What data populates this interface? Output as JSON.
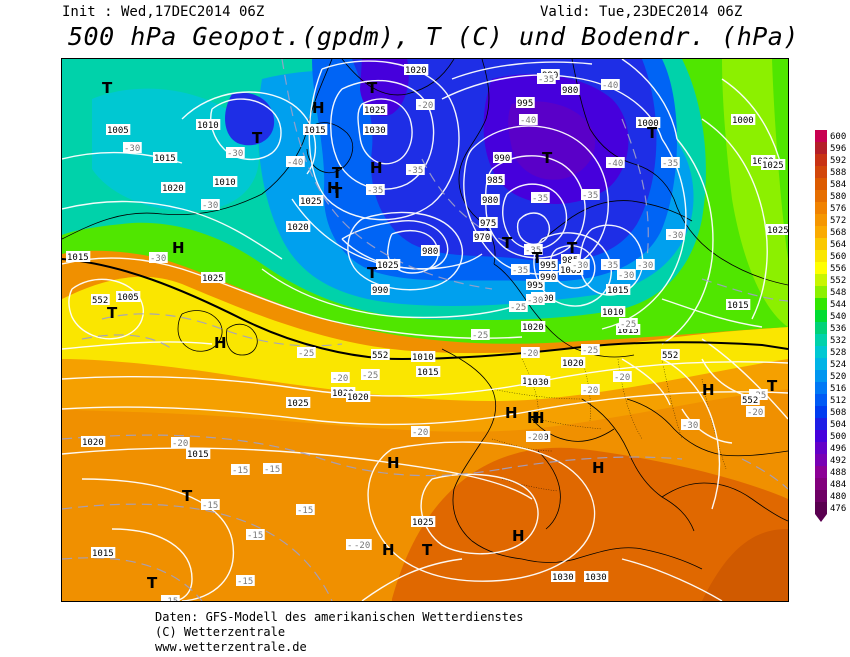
{
  "header": {
    "init": "Init : Wed,17DEC2014 06Z",
    "valid": "Valid: Tue,23DEC2014 06Z",
    "title": "500 hPa Geopot.(gpdm), T (C) und Bodendr. (hPa)"
  },
  "legend": {
    "labels": [
      "600",
      "596",
      "592",
      "588",
      "584",
      "580",
      "576",
      "572",
      "568",
      "564",
      "560",
      "556",
      "552",
      "548",
      "544",
      "540",
      "536",
      "532",
      "528",
      "524",
      "520",
      "516",
      "512",
      "508",
      "504",
      "500",
      "496",
      "492",
      "488",
      "484",
      "480",
      "476"
    ],
    "colors": [
      "#c80050",
      "#b41e28",
      "#c83214",
      "#d2460a",
      "#dc5a00",
      "#e66e00",
      "#f08200",
      "#f59600",
      "#faaa00",
      "#fac800",
      "#fae600",
      "#ffff00",
      "#c8f500",
      "#8cf000",
      "#32e600",
      "#00dc32",
      "#00d278",
      "#00d2aa",
      "#00c8d2",
      "#00b4e6",
      "#0096f0",
      "#0078f5",
      "#005af5",
      "#003cf0",
      "#1e1ee6",
      "#4600dc",
      "#6400c8",
      "#7800b4",
      "#8c0096",
      "#82007d",
      "#6e0064",
      "#5a0050"
    ]
  },
  "map": {
    "pressure_labels": [
      {
        "t": "1020"
      },
      {
        "t": "1025"
      },
      {
        "t": "1030"
      },
      {
        "t": "1010"
      },
      {
        "t": "1015"
      },
      {
        "t": "1015"
      },
      {
        "t": "1020"
      },
      {
        "t": "1020"
      },
      {
        "t": "1025"
      },
      {
        "t": "1010"
      },
      {
        "t": "1005"
      },
      {
        "t": "1015"
      },
      {
        "t": "1025"
      },
      {
        "t": "1005"
      },
      {
        "t": "1010"
      },
      {
        "t": "1015"
      },
      {
        "t": "1020"
      },
      {
        "t": "1025"
      },
      {
        "t": "1020"
      },
      {
        "t": "1020"
      },
      {
        "t": "1015"
      },
      {
        "t": "1015"
      },
      {
        "t": "1025"
      },
      {
        "t": "1030"
      },
      {
        "t": "1030"
      },
      {
        "t": "1030"
      },
      {
        "t": "1030"
      },
      {
        "t": "1025"
      },
      {
        "t": "1030"
      },
      {
        "t": "1020"
      },
      {
        "t": "1015"
      },
      {
        "t": "1010"
      },
      {
        "t": "1015"
      },
      {
        "t": "1020"
      },
      {
        "t": "1025"
      },
      {
        "t": "1025"
      },
      {
        "t": "1000"
      },
      {
        "t": "995"
      },
      {
        "t": "990"
      },
      {
        "t": "985"
      },
      {
        "t": "980"
      },
      {
        "t": "975"
      },
      {
        "t": "970"
      },
      {
        "t": "980"
      },
      {
        "t": "990"
      },
      {
        "t": "995"
      },
      {
        "t": "1000"
      },
      {
        "t": "990"
      },
      {
        "t": "995"
      },
      {
        "t": "985"
      },
      {
        "t": "990"
      },
      {
        "t": "980"
      },
      {
        "t": "1005"
      },
      {
        "t": "1000"
      },
      {
        "t": "1020"
      },
      {
        "t": "1015"
      }
    ],
    "temp_labels": [
      {
        "t": "-35"
      },
      {
        "t": "-40"
      },
      {
        "t": "-20"
      },
      {
        "t": "-35"
      },
      {
        "t": "-30"
      },
      {
        "t": "-40"
      },
      {
        "t": "-30"
      },
      {
        "t": "-35"
      },
      {
        "t": "-30"
      },
      {
        "t": "-40"
      },
      {
        "t": "-35"
      },
      {
        "t": "-35"
      },
      {
        "t": "-35"
      },
      {
        "t": "-35"
      },
      {
        "t": "-30"
      },
      {
        "t": "-25"
      },
      {
        "t": "-30"
      },
      {
        "t": "-30"
      },
      {
        "t": "-25"
      },
      {
        "t": "-35"
      },
      {
        "t": "-25"
      },
      {
        "t": "-25"
      },
      {
        "t": "-25"
      },
      {
        "t": "-20"
      },
      {
        "t": "-20"
      },
      {
        "t": "-20"
      },
      {
        "t": "-20"
      },
      {
        "t": "-20"
      },
      {
        "t": "-15"
      },
      {
        "t": "-15"
      },
      {
        "t": "-15"
      },
      {
        "t": "-15"
      },
      {
        "t": "-20"
      },
      {
        "t": "-15"
      },
      {
        "t": "-15"
      },
      {
        "t": "-15"
      },
      {
        "t": "-20"
      },
      {
        "t": "-20"
      },
      {
        "t": "-25"
      },
      {
        "t": "-20"
      },
      {
        "t": "-30"
      },
      {
        "t": "-30"
      },
      {
        "t": "-30"
      },
      {
        "t": "-30"
      },
      {
        "t": "-35"
      },
      {
        "t": "-20"
      },
      {
        "t": "-25"
      },
      {
        "t": "-40"
      }
    ],
    "geopot_labels": [
      {
        "t": "552"
      },
      {
        "t": "552"
      },
      {
        "t": "552"
      },
      {
        "t": "552"
      }
    ],
    "highs": [
      "H",
      "H",
      "H",
      "H",
      "H",
      "H",
      "H",
      "H",
      "H",
      "H",
      "H",
      "H",
      "H"
    ],
    "lows": [
      "T",
      "T",
      "T",
      "T",
      "T",
      "T",
      "T",
      "T",
      "T",
      "T",
      "T",
      "T",
      "T",
      "T",
      "T",
      "T"
    ]
  },
  "footer": {
    "line1": "Daten: GFS-Modell des amerikanischen Wetterdienstes",
    "line2": "(C) Wetterzentrale",
    "line3": "www.wetterzentrale.de"
  }
}
